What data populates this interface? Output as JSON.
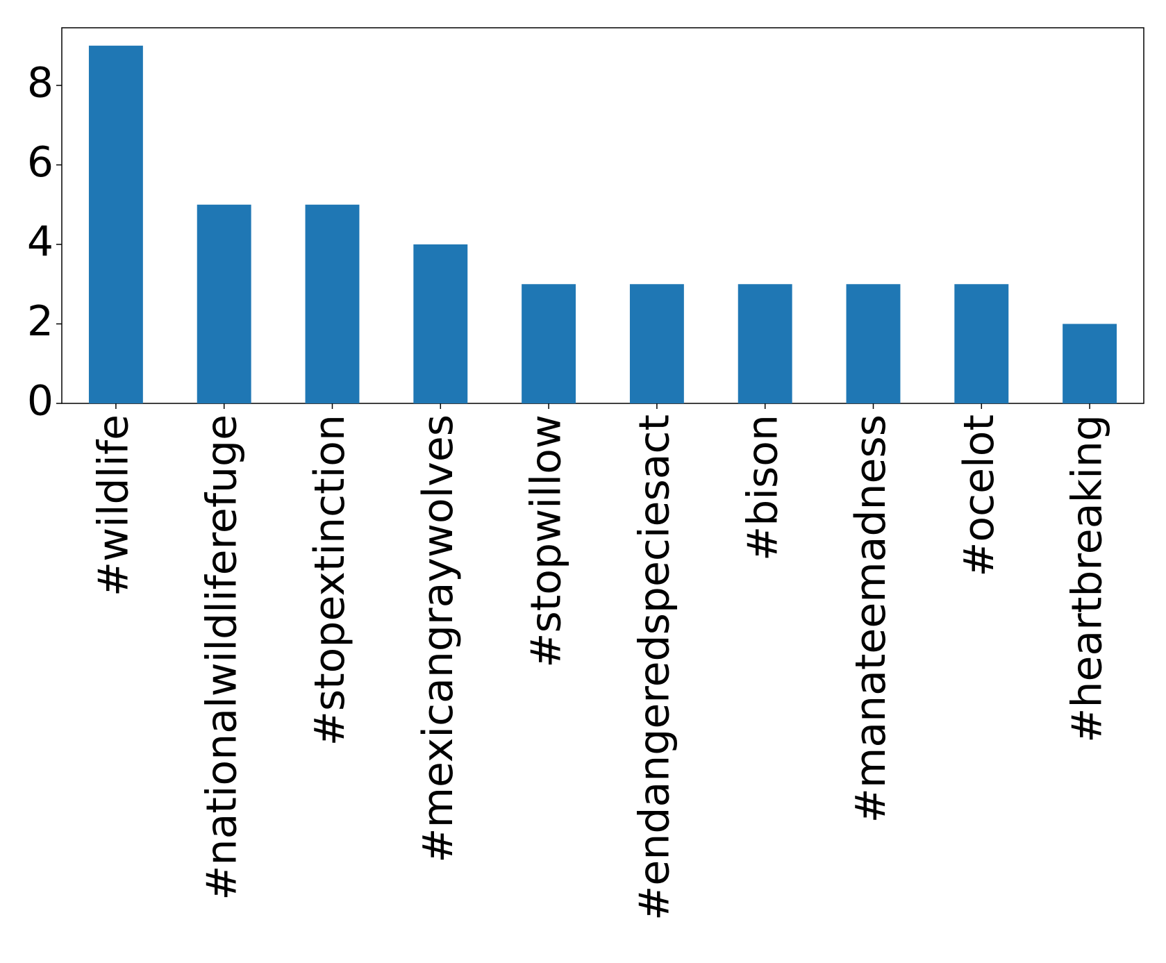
{
  "chart_data": {
    "type": "bar",
    "categories": [
      "#wildlife",
      "#nationalwildliferefuge",
      "#stopextinction",
      "#mexicangraywolves",
      "#stopwillow",
      "#endangeredspeciesact",
      "#bison",
      "#manateemadness",
      "#ocelot",
      "#heartbreaking"
    ],
    "values": [
      9,
      5,
      5,
      4,
      3,
      3,
      3,
      3,
      3,
      2
    ],
    "color": "#1f77b4",
    "ylim": [
      0,
      9.45
    ],
    "yticks": [
      0,
      2,
      4,
      6,
      8
    ],
    "grid": false
  }
}
